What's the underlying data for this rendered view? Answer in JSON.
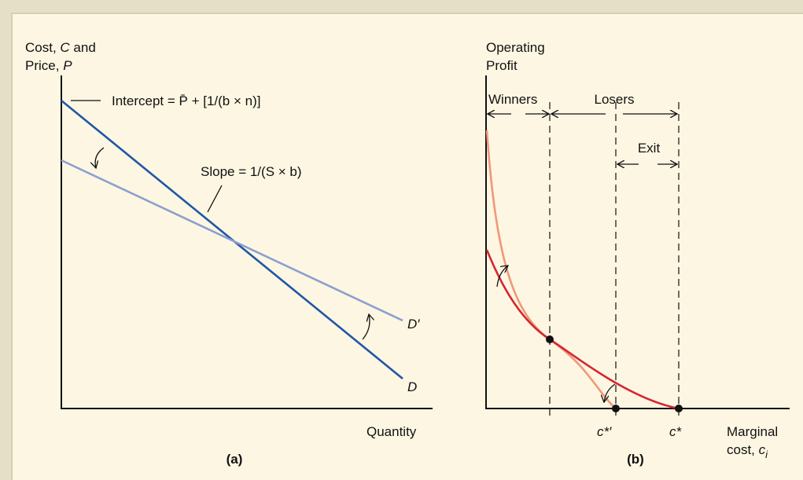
{
  "colors": {
    "background": "#e5dfc7",
    "panel": "#fdf6e2",
    "D": "#1f57a4",
    "D_prime": "#8c9fd0",
    "profit_dark": "#d62632",
    "profit_light": "#f19778",
    "axis": "#111111"
  },
  "panel_a": {
    "caption": "(a)",
    "y_label_line1_prefix": "Cost, ",
    "y_label_line1_var": "C",
    "y_label_line1_suffix": " and",
    "y_label_line2_prefix": "Price, ",
    "y_label_line2_var": "P",
    "x_label": "Quantity",
    "intercept_label": "Intercept = P̄ + [1/(b × n)]",
    "slope_label": "Slope = 1/(S × b)",
    "D_label": "D",
    "D_prime_label": "D′"
  },
  "panel_b": {
    "caption": "(b)",
    "y_label_line1": "Operating",
    "y_label_line2": "Profit",
    "x_label_line1": "Marginal",
    "x_label_line2_prefix": "cost, ",
    "x_label_line2_var": "c",
    "x_label_line2_sub": "i",
    "winners_label": "Winners",
    "losers_label": "Losers",
    "exit_label": "Exit",
    "c_star_prime_label": "c*′",
    "c_star_label": "c*"
  }
}
